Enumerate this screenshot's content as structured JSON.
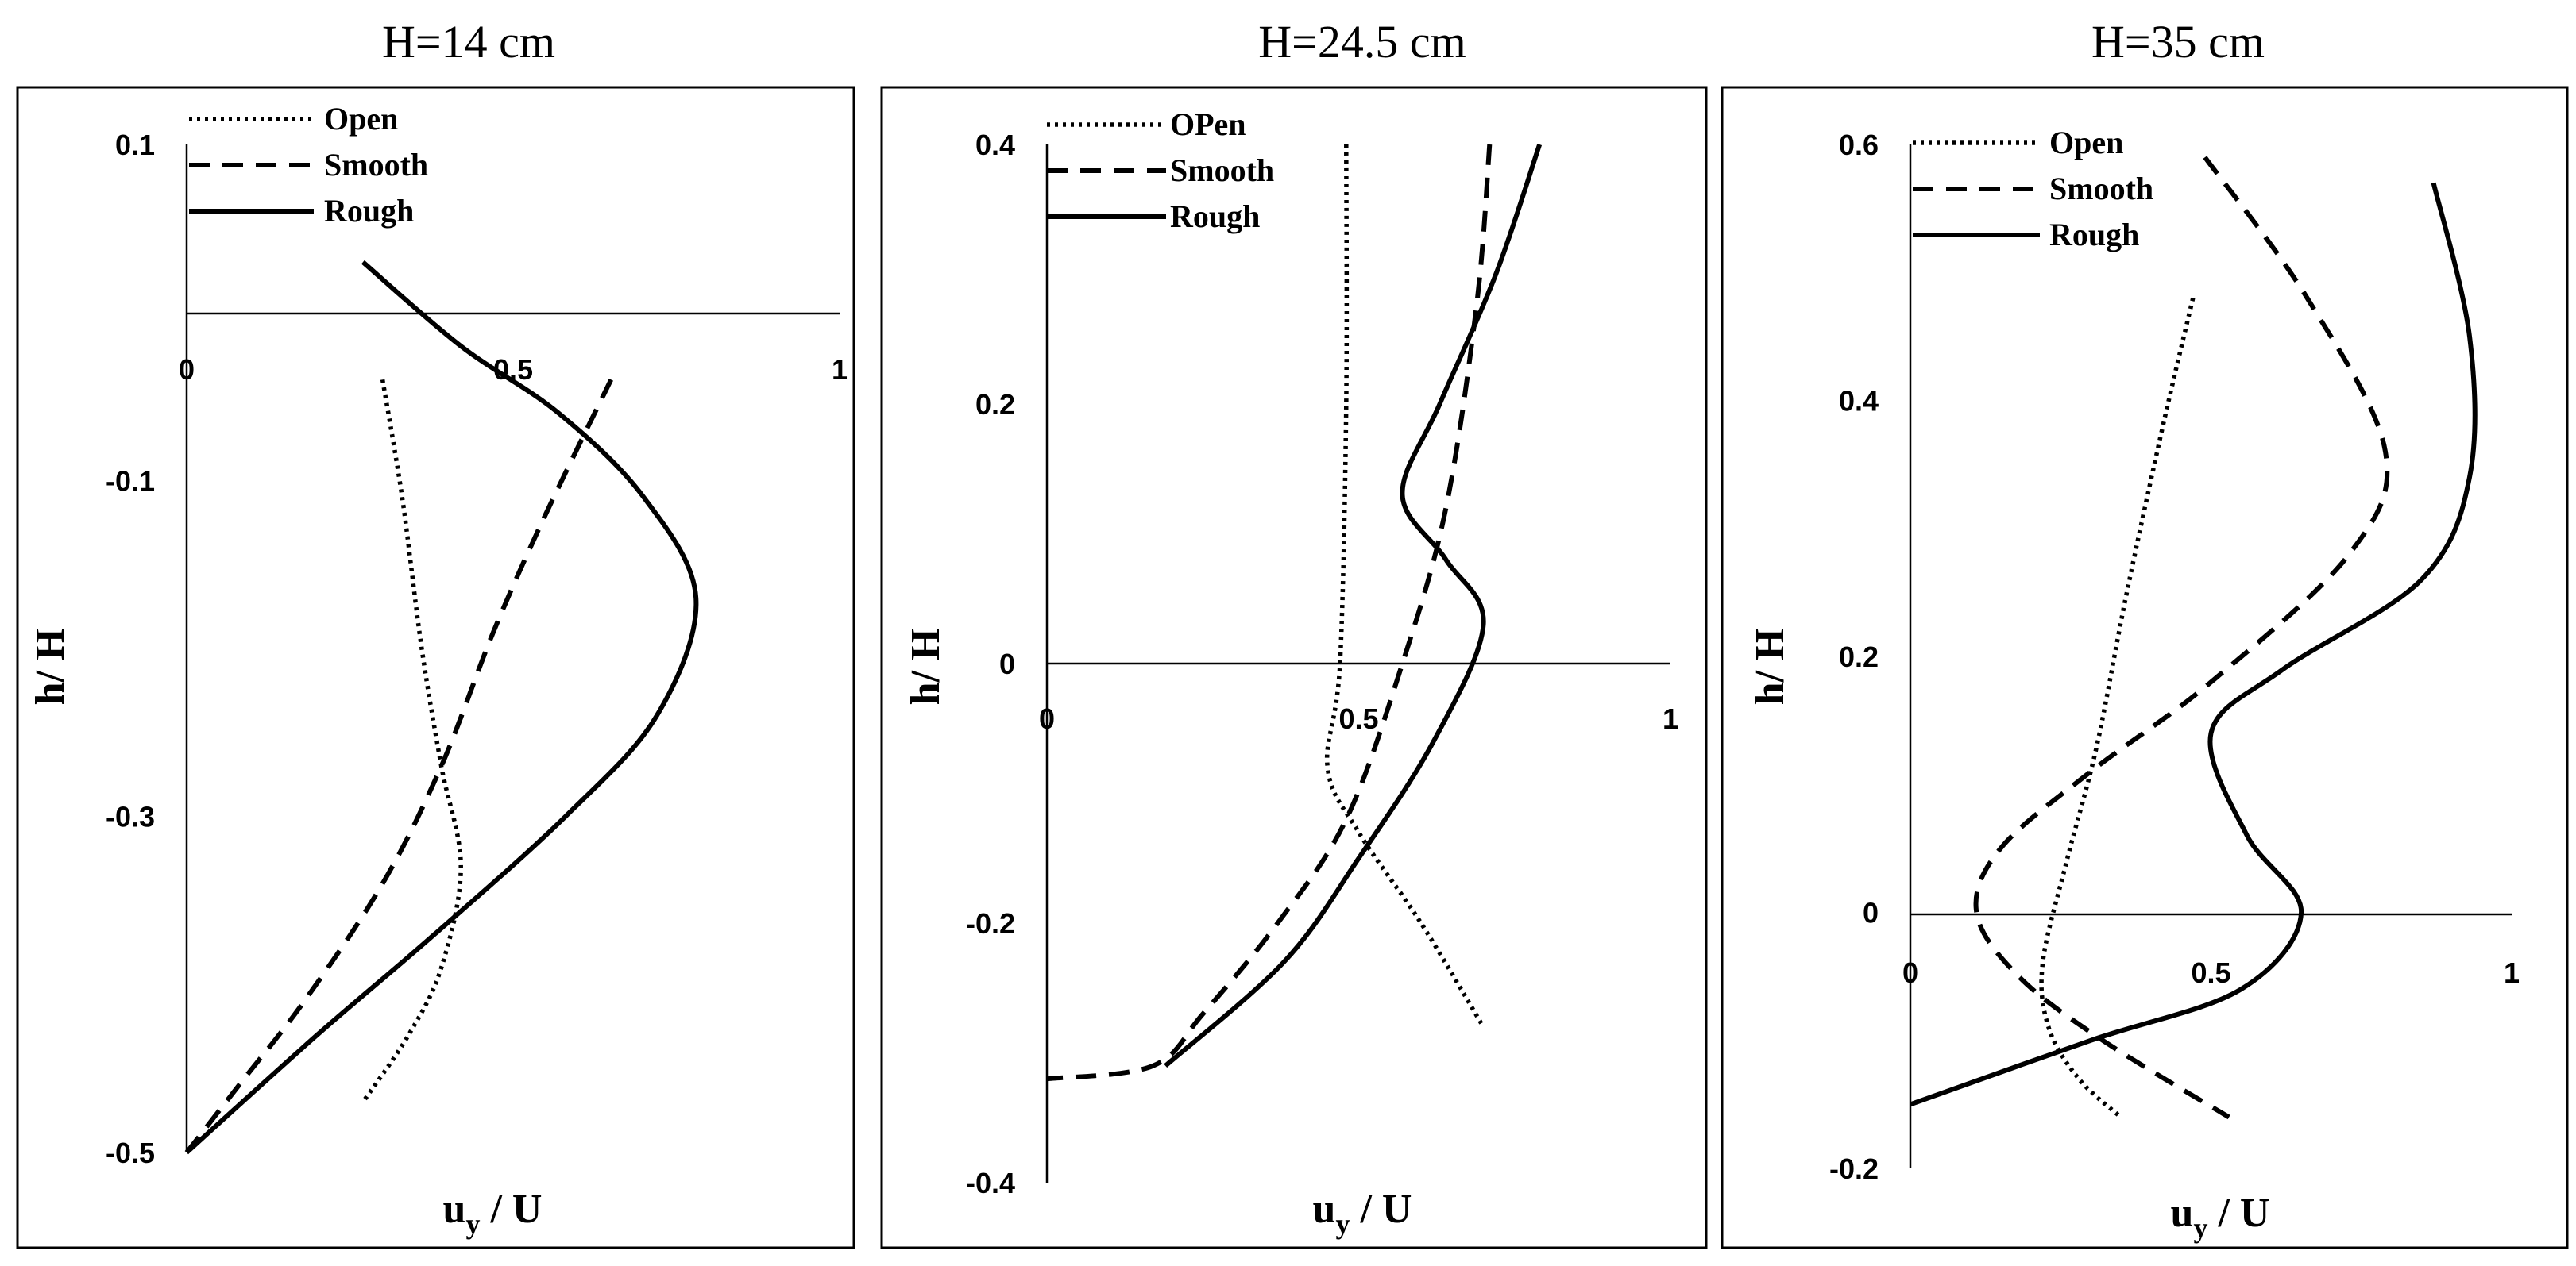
{
  "chart_data": [
    {
      "type": "line",
      "title": "H=14 cm",
      "xlabel": "u",
      "xlabel_sub": "y",
      "xlabel_tail": " / U",
      "ylabel": "h/ H",
      "xlim": [
        0,
        1
      ],
      "ylim": [
        -0.5,
        0.1
      ],
      "xticks": [
        0,
        0.5,
        1
      ],
      "xtick_labels": [
        "0",
        "0.5",
        "1"
      ],
      "yticks": [
        0.1,
        -0.1,
        -0.3,
        -0.5
      ],
      "ytick_labels": [
        "0.1",
        "-0.1",
        "-0.3",
        "-0.5"
      ],
      "legend_position": "top-left",
      "series": [
        {
          "name": "Open",
          "style": "dotted",
          "points": [
            [
              0.3,
              -0.04
            ],
            [
              0.33,
              -0.11
            ],
            [
              0.36,
              -0.2
            ],
            [
              0.39,
              -0.27
            ],
            [
              0.42,
              -0.33
            ],
            [
              0.39,
              -0.39
            ],
            [
              0.34,
              -0.43
            ],
            [
              0.27,
              -0.47
            ]
          ]
        },
        {
          "name": "Smooth",
          "style": "dashed",
          "points": [
            [
              0.65,
              -0.04
            ],
            [
              0.55,
              -0.12
            ],
            [
              0.47,
              -0.19
            ],
            [
              0.39,
              -0.27
            ],
            [
              0.3,
              -0.34
            ],
            [
              0.18,
              -0.41
            ],
            [
              0.08,
              -0.46
            ],
            [
              0.0,
              -0.5
            ]
          ]
        },
        {
          "name": "Rough",
          "style": "solid",
          "points": [
            [
              0.27,
              0.03
            ],
            [
              0.42,
              -0.02
            ],
            [
              0.57,
              -0.06
            ],
            [
              0.7,
              -0.11
            ],
            [
              0.78,
              -0.17
            ],
            [
              0.72,
              -0.24
            ],
            [
              0.58,
              -0.3
            ],
            [
              0.38,
              -0.37
            ],
            [
              0.2,
              -0.43
            ],
            [
              0.0,
              -0.5
            ]
          ]
        }
      ]
    },
    {
      "type": "line",
      "title": "H=24.5 cm",
      "xlabel": "u",
      "xlabel_sub": "y",
      "xlabel_tail": " / U",
      "ylabel": "h/ H",
      "xlim": [
        0,
        1
      ],
      "ylim": [
        -0.4,
        0.4
      ],
      "xticks": [
        0,
        0.5,
        1
      ],
      "xtick_labels": [
        "0",
        "0.5",
        "1"
      ],
      "yticks": [
        0.4,
        0.2,
        0,
        -0.2,
        -0.4
      ],
      "ytick_labels": [
        "0.4",
        "0.2",
        "0",
        "-0.2",
        "-0.4"
      ],
      "legend_position": "top-left",
      "series": [
        {
          "name": "OPen",
          "style": "dotted",
          "points": [
            [
              0.48,
              0.4
            ],
            [
              0.48,
              0.2
            ],
            [
              0.47,
              0.0
            ],
            [
              0.45,
              -0.08
            ],
            [
              0.5,
              -0.13
            ],
            [
              0.6,
              -0.2
            ],
            [
              0.7,
              -0.28
            ]
          ]
        },
        {
          "name": "Smooth",
          "style": "dashed",
          "points": [
            [
              0.71,
              0.4
            ],
            [
              0.69,
              0.28
            ],
            [
              0.64,
              0.12
            ],
            [
              0.57,
              0.0
            ],
            [
              0.48,
              -0.12
            ],
            [
              0.37,
              -0.2
            ],
            [
              0.25,
              -0.27
            ],
            [
              0.17,
              -0.31
            ],
            [
              0.0,
              -0.32
            ]
          ]
        },
        {
          "name": "Rough",
          "style": "solid",
          "points": [
            [
              0.79,
              0.4
            ],
            [
              0.72,
              0.3
            ],
            [
              0.63,
              0.2
            ],
            [
              0.57,
              0.13
            ],
            [
              0.64,
              0.08
            ],
            [
              0.7,
              0.03
            ],
            [
              0.62,
              -0.06
            ],
            [
              0.5,
              -0.15
            ],
            [
              0.38,
              -0.23
            ],
            [
              0.19,
              -0.31
            ]
          ]
        }
      ]
    },
    {
      "type": "line",
      "title": "H=35 cm",
      "xlabel": "u",
      "xlabel_sub": "y",
      "xlabel_tail": " / U",
      "ylabel": "h/ H",
      "xlim": [
        0,
        1
      ],
      "ylim": [
        -0.2,
        0.6
      ],
      "xticks": [
        0,
        0.5,
        1
      ],
      "xtick_labels": [
        "0",
        "0.5",
        "1"
      ],
      "yticks": [
        0.6,
        0.4,
        0.2,
        0,
        -0.2
      ],
      "ytick_labels": [
        "0.6",
        "0.4",
        "0.2",
        "0",
        "-0.2"
      ],
      "legend_position": "top-left",
      "series": [
        {
          "name": "Open",
          "style": "dotted",
          "points": [
            [
              0.47,
              0.48
            ],
            [
              0.42,
              0.38
            ],
            [
              0.36,
              0.25
            ],
            [
              0.31,
              0.13
            ],
            [
              0.26,
              0.04
            ],
            [
              0.22,
              -0.04
            ],
            [
              0.23,
              -0.09
            ],
            [
              0.28,
              -0.13
            ],
            [
              0.35,
              -0.16
            ]
          ]
        },
        {
          "name": "Smooth",
          "style": "dashed",
          "points": [
            [
              0.49,
              0.59
            ],
            [
              0.66,
              0.48
            ],
            [
              0.79,
              0.36
            ],
            [
              0.73,
              0.28
            ],
            [
              0.5,
              0.18
            ],
            [
              0.3,
              0.11
            ],
            [
              0.15,
              0.05
            ],
            [
              0.11,
              0.0
            ],
            [
              0.18,
              -0.05
            ],
            [
              0.32,
              -0.1
            ],
            [
              0.53,
              -0.16
            ]
          ]
        },
        {
          "name": "Rough",
          "style": "solid",
          "points": [
            [
              0.87,
              0.57
            ],
            [
              0.93,
              0.45
            ],
            [
              0.93,
              0.34
            ],
            [
              0.85,
              0.26
            ],
            [
              0.62,
              0.19
            ],
            [
              0.5,
              0.14
            ],
            [
              0.56,
              0.06
            ],
            [
              0.65,
              0.0
            ],
            [
              0.55,
              -0.06
            ],
            [
              0.3,
              -0.1
            ],
            [
              0.0,
              -0.15
            ]
          ]
        }
      ]
    }
  ]
}
